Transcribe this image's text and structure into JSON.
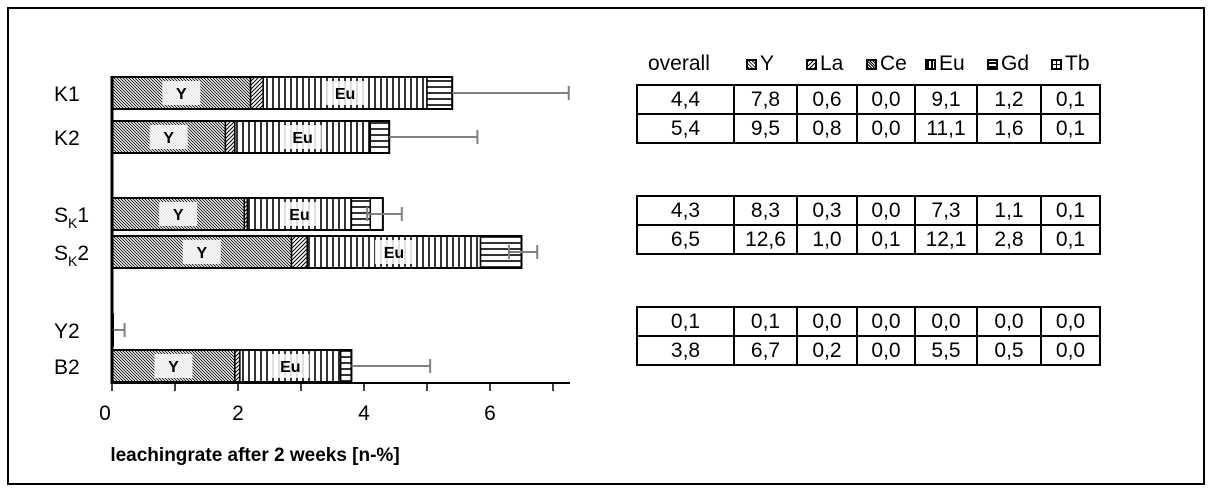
{
  "chart_data": {
    "type": "bar",
    "orientation": "horizontal",
    "stacked": true,
    "categories": [
      "K1",
      "K2",
      "SK1",
      "SK2",
      "Y2",
      "B2"
    ],
    "category_labels": [
      {
        "main": "K1",
        "sub": ""
      },
      {
        "main": "K2",
        "sub": ""
      },
      {
        "main": "S",
        "sub": "K",
        "suffix": "1"
      },
      {
        "main": "S",
        "sub": "K",
        "suffix": "2"
      },
      {
        "main": "Y2",
        "sub": ""
      },
      {
        "main": "B2",
        "sub": ""
      }
    ],
    "series": [
      {
        "name": "Y",
        "pattern": "dense-diagonal",
        "values": [
          2.2,
          1.8,
          2.1,
          2.85,
          0.02,
          1.95
        ],
        "label": "Y"
      },
      {
        "name": "La",
        "pattern": "diagonal",
        "values": [
          0.2,
          0.15,
          0.05,
          0.25,
          0.0,
          0.08
        ],
        "label": ""
      },
      {
        "name": "Ce",
        "pattern": "dense",
        "values": [
          0.0,
          0.0,
          0.0,
          0.0,
          0.0,
          0.0
        ],
        "label": ""
      },
      {
        "name": "Eu",
        "pattern": "vertical",
        "values": [
          2.6,
          2.15,
          1.65,
          2.75,
          0.0,
          1.6
        ],
        "label": "Eu"
      },
      {
        "name": "Gd",
        "pattern": "horizontal",
        "values": [
          0.4,
          0.3,
          0.3,
          0.65,
          0.0,
          0.17
        ],
        "label": ""
      },
      {
        "name": "Tb",
        "pattern": "grid",
        "values": [
          0.0,
          0.0,
          0.0,
          0.0,
          0.0,
          0.0
        ],
        "label": ""
      }
    ],
    "totals": [
      5.4,
      4.4,
      4.3,
      6.5,
      0.02,
      3.8
    ],
    "error_high": [
      7.25,
      5.8,
      4.6,
      6.75,
      0.2,
      5.05
    ],
    "error_low": [
      null,
      null,
      4.05,
      6.3,
      null,
      null
    ],
    "xlim": [
      0,
      7.2
    ],
    "xticks": [
      "0",
      "2",
      "4",
      "6"
    ],
    "xtick_values": [
      0,
      2,
      4,
      6
    ],
    "xlabel": "leachingrate after 2 weeks [n-%]",
    "grid": false
  },
  "table": {
    "headers": [
      {
        "label": "overall",
        "icon": ""
      },
      {
        "label": "Y",
        "icon": "dense-diagonal"
      },
      {
        "label": "La",
        "icon": "diagonal"
      },
      {
        "label": "Ce",
        "icon": "dense"
      },
      {
        "label": "Eu",
        "icon": "vertical"
      },
      {
        "label": "Gd",
        "icon": "horizontal"
      },
      {
        "label": "Tb",
        "icon": "grid"
      }
    ],
    "groups": [
      [
        [
          "4,4",
          "7,8",
          "0,6",
          "0,0",
          "9,1",
          "1,2",
          "0,1"
        ],
        [
          "5,4",
          "9,5",
          "0,8",
          "0,0",
          "11,1",
          "1,6",
          "0,1"
        ]
      ],
      [
        [
          "4,3",
          "8,3",
          "0,3",
          "0,0",
          "7,3",
          "1,1",
          "0,1"
        ],
        [
          "6,5",
          "12,6",
          "1,0",
          "0,1",
          "12,1",
          "2,8",
          "0,1"
        ]
      ],
      [
        [
          "0,1",
          "0,1",
          "0,0",
          "0,0",
          "0,0",
          "0,0",
          "0,0"
        ],
        [
          "3,8",
          "6,7",
          "0,2",
          "0,0",
          "5,5",
          "0,5",
          "0,0"
        ]
      ]
    ]
  }
}
